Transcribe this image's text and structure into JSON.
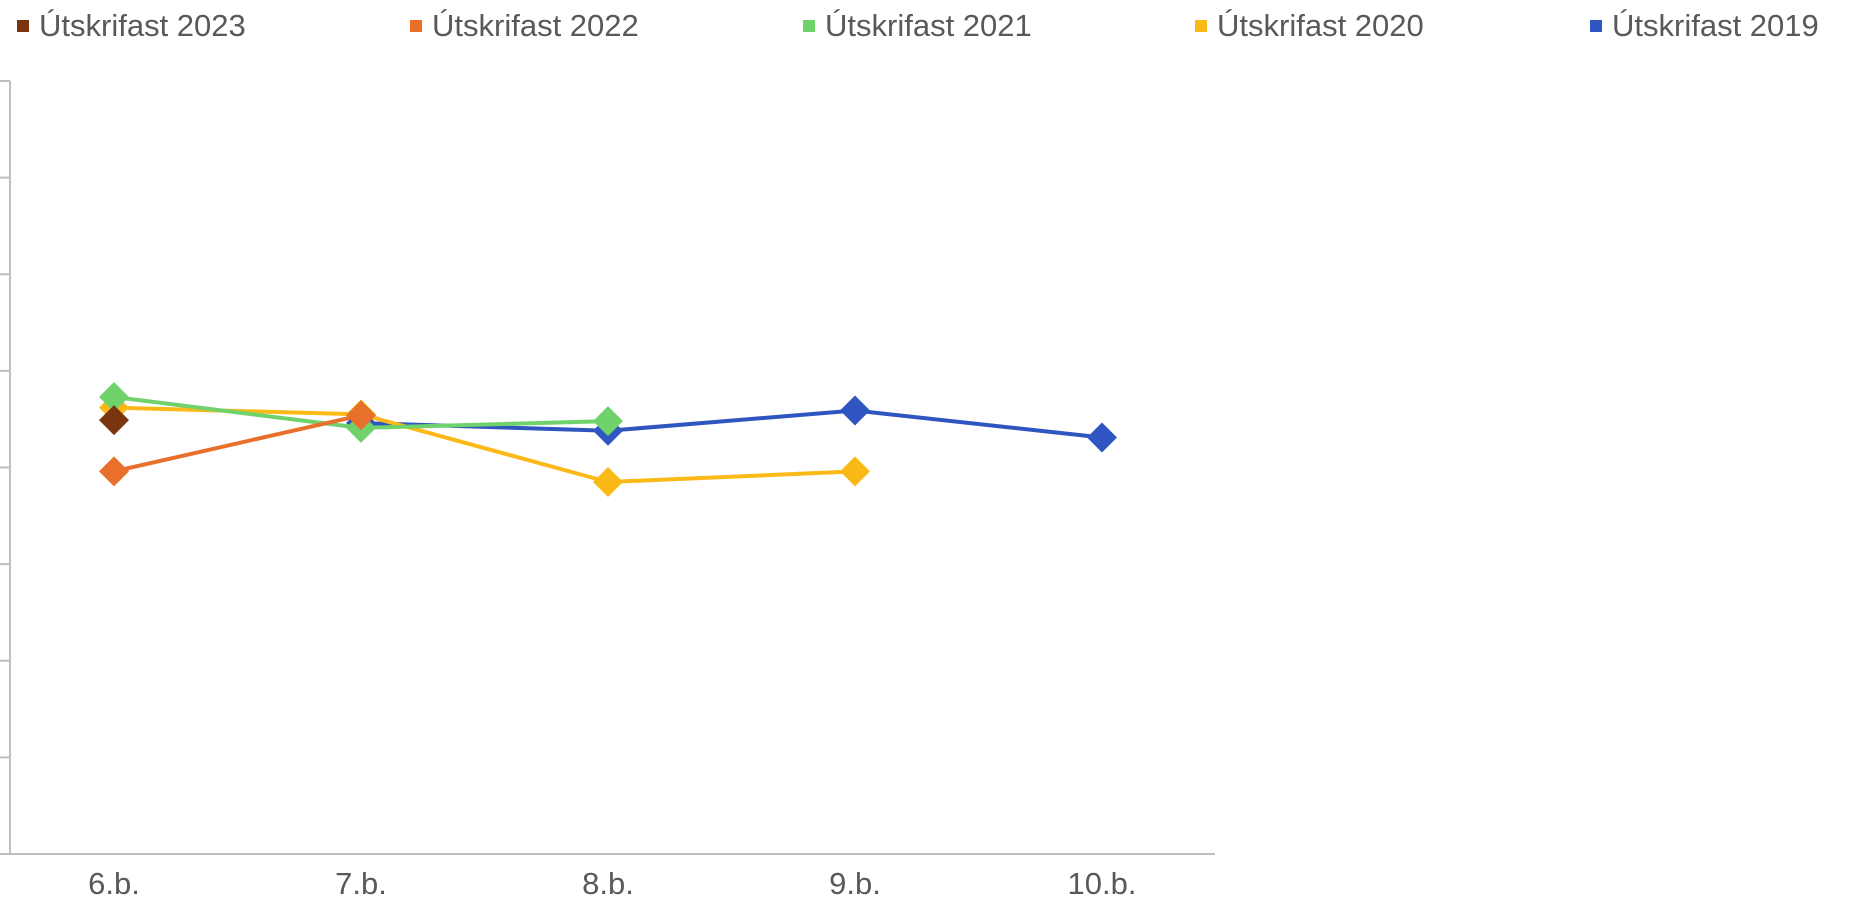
{
  "chart_data": {
    "type": "line",
    "categories": [
      "6.b.",
      "7.b.",
      "8.b.",
      "9.b.",
      "10.b."
    ],
    "series": [
      {
        "name": "Útskrifast 2023",
        "color": "#7b3410",
        "values": [
          4.49,
          null,
          null,
          null,
          null
        ]
      },
      {
        "name": "Útskrifast 2022",
        "color": "#e8702a",
        "values": [
          3.96,
          4.54,
          null,
          null,
          null
        ]
      },
      {
        "name": "Útskrifast 2021",
        "color": "#6fd26a",
        "values": [
          4.73,
          4.41,
          4.48,
          null,
          null
        ]
      },
      {
        "name": "Útskrifast 2020",
        "color": "#fbb917",
        "values": [
          4.62,
          4.55,
          3.85,
          3.96,
          null
        ]
      },
      {
        "name": "Útskrifast 2019",
        "color": "#2f55c0",
        "values": [
          null,
          4.46,
          4.38,
          4.59,
          4.31
        ]
      }
    ],
    "ylim": [
      0,
      8
    ],
    "yticks": [
      0,
      1,
      2,
      3,
      4,
      5,
      6,
      7,
      8
    ],
    "legend": "top"
  }
}
